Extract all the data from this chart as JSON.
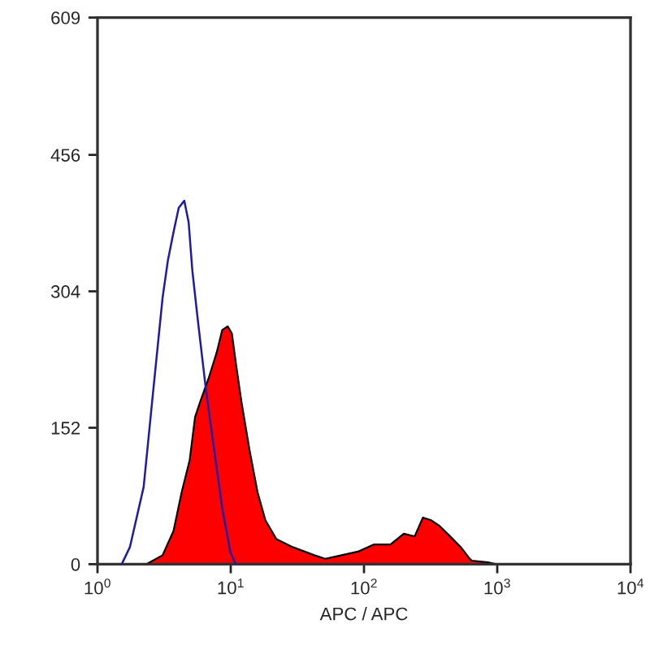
{
  "chart_data": {
    "type": "area",
    "xlabel": "APC / APC",
    "log": "x",
    "xlim": [
      1,
      10000
    ],
    "xticks": [
      {
        "value": 1,
        "label": "10$^{0}$"
      },
      {
        "value": 10,
        "label": "10$^{1}$"
      },
      {
        "value": 100,
        "label": "10$^{2}$"
      },
      {
        "value": 1000,
        "label": "10$^{3}$"
      },
      {
        "value": 10000,
        "label": "10$^{4}$"
      }
    ],
    "ylim": [
      0,
      609
    ],
    "yticks": [
      0,
      152,
      304,
      456,
      609
    ],
    "grid": false,
    "marker": "none",
    "line_style": "solid",
    "series": [
      {
        "color": "#ff0000",
        "x": [
          2.32,
          3.08,
          3.72,
          4.28,
          4.92,
          5.4,
          5.93,
          6.82,
          7.85,
          8.64,
          9.48,
          10.2,
          10.9,
          12.0,
          13.8,
          15.9,
          18.2,
          22.0,
          29.2,
          42.4,
          51.2,
          67.8,
          89.9,
          119,
          158,
          199,
          240,
          277,
          318,
          366,
          443,
          533,
          614,
          643,
          851,
          980
        ],
        "values": [
          0,
          10,
          37,
          80,
          116,
          164,
          182,
          207,
          236,
          261,
          265,
          257,
          225,
          182,
          128,
          80,
          49,
          28,
          19,
          10,
          6,
          10,
          14,
          22,
          22,
          34,
          31,
          52,
          49,
          43,
          31,
          19,
          7,
          4,
          2,
          0
        ]
      },
      {
        "type": "line",
        "color": "#1c1ca8",
        "x": [
          1.52,
          1.75,
          2.22,
          2.55,
          3.08,
          3.38,
          3.72,
          4.07,
          4.48,
          4.83,
          5.15,
          5.66,
          6.52,
          7.5,
          8.64,
          9.95,
          10.9
        ],
        "values": [
          0,
          19,
          86,
          176,
          297,
          339,
          370,
          397,
          405,
          381,
          327,
          272,
          194,
          128,
          62,
          13,
          0
        ]
      }
    ]
  }
}
